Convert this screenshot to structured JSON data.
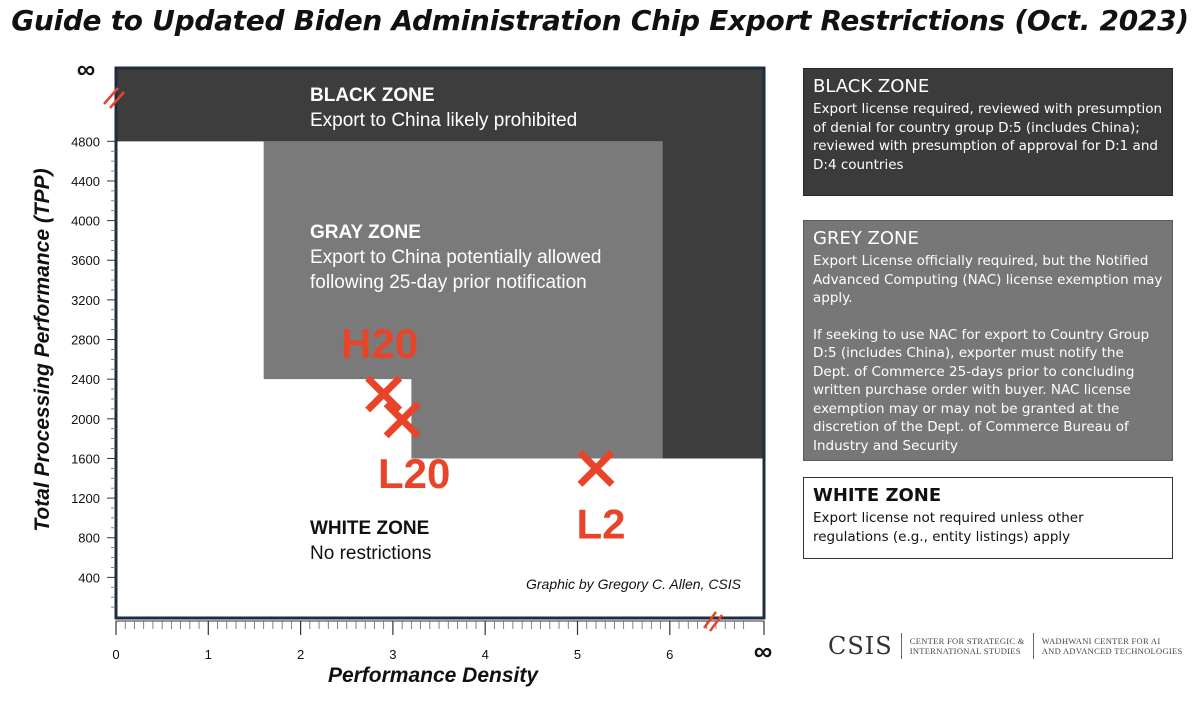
{
  "page": {
    "title": "Guide to Updated Biden Administration Chip Export Restrictions (Oct. 2023)"
  },
  "chart_data": {
    "type": "scatter",
    "title": "Guide to Updated Biden Administration Chip Export Restrictions (Oct. 2023)",
    "xlabel": "Performance Density",
    "ylabel": "Total Processing Performance (TPP)",
    "xlim": [
      0,
      7
    ],
    "ylim": [
      0,
      5600
    ],
    "x_ticks": [
      0,
      1,
      2,
      3,
      4,
      5,
      6
    ],
    "x_tick_labels": [
      "0",
      "1",
      "2",
      "3",
      "4",
      "5",
      "6"
    ],
    "x_infinity_label": "∞",
    "y_ticks": [
      400,
      800,
      1200,
      1600,
      2000,
      2400,
      2800,
      3200,
      3600,
      4000,
      4400,
      4800
    ],
    "y_tick_labels": [
      "400",
      "800",
      "1200",
      "1600",
      "2000",
      "2400",
      "2800",
      "3200",
      "3600",
      "4000",
      "4400",
      "4800"
    ],
    "y_infinity_label": "∞",
    "axis_breaks": [
      "x between 6 and ∞",
      "y between 4800 and ∞"
    ],
    "zones": [
      {
        "name": "BLACK ZONE",
        "description": "Export to China likely prohibited",
        "color": "#3d3d3d",
        "region": "TPP ≥ 4800, or TPP ≥ 1600 with performance density ≥ 5.92"
      },
      {
        "name": "GRAY ZONE",
        "description": "Export to China potentially allowed following 25-day prior notification",
        "color": "#7a7a7a",
        "region": "2400 ≤ TPP < 4800 with performance density ≥ 1.6, or 1600 ≤ TPP < 4800 with performance density ≥ 3.2 (below 5.92)"
      },
      {
        "name": "WHITE ZONE",
        "description": "No restrictions",
        "color": "#ffffff",
        "region": "everything else"
      }
    ],
    "points": [
      {
        "label": "H20",
        "x": 2.9,
        "y": 2250,
        "color": "#e8442a"
      },
      {
        "label": "L20",
        "x": 3.1,
        "y": 1990,
        "color": "#e8442a"
      },
      {
        "label": "L2",
        "x": 5.2,
        "y": 1500,
        "color": "#e8442a"
      }
    ],
    "credit": "Graphic by Gregory C. Allen, CSIS"
  },
  "legend": {
    "black": {
      "heading": "BLACK ZONE",
      "text": "Export license required, reviewed with presumption of denial for country group D:5 (includes China); reviewed with presumption of approval for D:1 and D:4 countries"
    },
    "grey": {
      "heading": "GREY ZONE",
      "text1": "Export License officially required, but the Notified Advanced Computing (NAC) license exemption may apply.",
      "text2": "If seeking to use NAC for export to Country Group D:5 (includes China), exporter must notify the Dept. of Commerce 25-days prior to concluding written purchase order with buyer. NAC license exemption may or may not be granted at the discretion of the Dept. of Commerce Bureau of Industry and Security"
    },
    "white": {
      "heading": "WHITE ZONE",
      "text": "Export license not required unless other regulations (e.g., entity listings) apply"
    }
  },
  "logos": {
    "csis": "CSIS",
    "center_name": "CENTER FOR STRATEGIC &\nINTERNATIONAL STUDIES",
    "wadhwani": "WADHWANI CENTER FOR AI\nAND ADVANCED TECHNOLOGIES"
  }
}
